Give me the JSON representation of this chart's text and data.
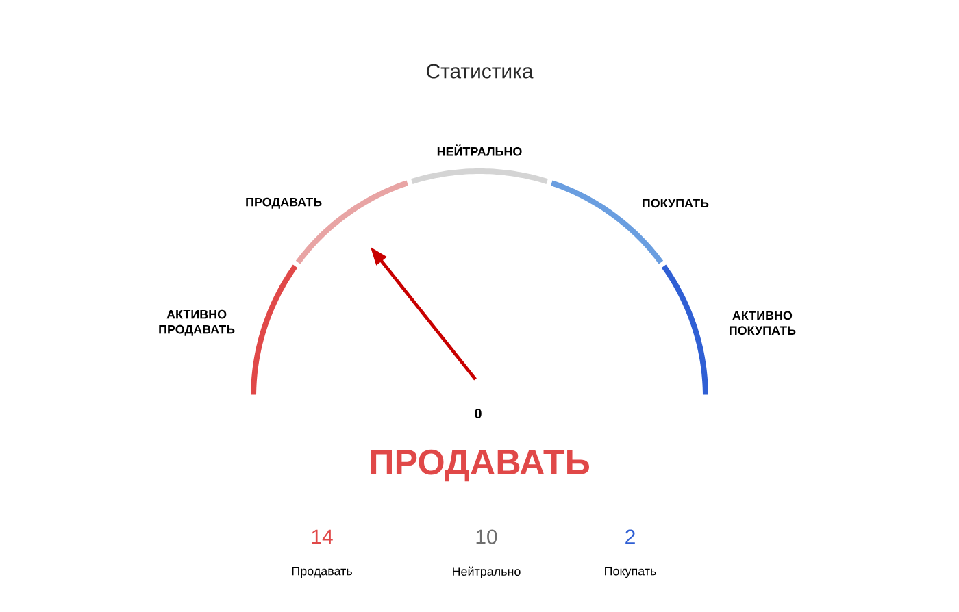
{
  "chart_data": {
    "type": "donut",
    "title": "Статистика",
    "categories": [
      "АКТИВНО ПРОДАВАТЬ",
      "ПРОДАВАТЬ",
      "НЕЙТРАЛЬНО",
      "ПОКУПАТЬ",
      "АКТИВНО ПОКУПАТЬ"
    ],
    "values": [
      20,
      20,
      20,
      20,
      20
    ],
    "colors": [
      "#e04848",
      "#e8a4a4",
      "#d4d4d4",
      "#6a9ee0",
      "#2f5fd4"
    ],
    "needle": "ПРОДАВАТЬ",
    "annotations": [
      "0",
      "14",
      "Продавать",
      "10",
      "Нейтрально",
      "2",
      "Покупать"
    ]
  }
}
